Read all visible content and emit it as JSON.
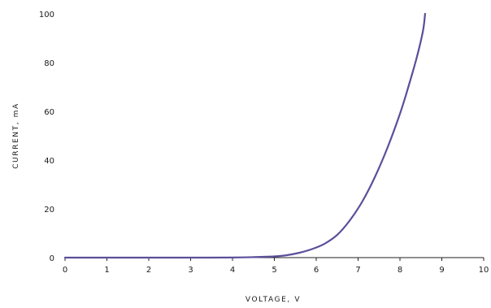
{
  "chart_data": {
    "type": "line",
    "title": "",
    "xlabel": "VOLTAGE, V",
    "ylabel": "CURRENT, mA",
    "xlim": [
      0,
      10
    ],
    "ylim": [
      0,
      100
    ],
    "x_ticks": [
      "0",
      "1",
      "2",
      "3",
      "4",
      "5",
      "6",
      "7",
      "8",
      "9",
      "10"
    ],
    "y_ticks": [
      "0",
      "20",
      "40",
      "60",
      "80",
      "100"
    ],
    "grid": false,
    "legend": "none",
    "series": [
      {
        "color": "#5a4f9a",
        "x": [
          0,
          1,
          2,
          3,
          4,
          4.5,
          5,
          5.3,
          5.6,
          5.9,
          6.2,
          6.5,
          6.8,
          7.1,
          7.4,
          7.7,
          8.0,
          8.2,
          8.4,
          8.55,
          8.6
        ],
        "y": [
          0,
          0,
          0,
          0,
          0.05,
          0.2,
          0.5,
          1.0,
          2.0,
          3.5,
          5.7,
          9.3,
          15.2,
          23.0,
          33.0,
          45.0,
          59.0,
          70.0,
          82.0,
          93.0,
          100
        ]
      }
    ]
  }
}
